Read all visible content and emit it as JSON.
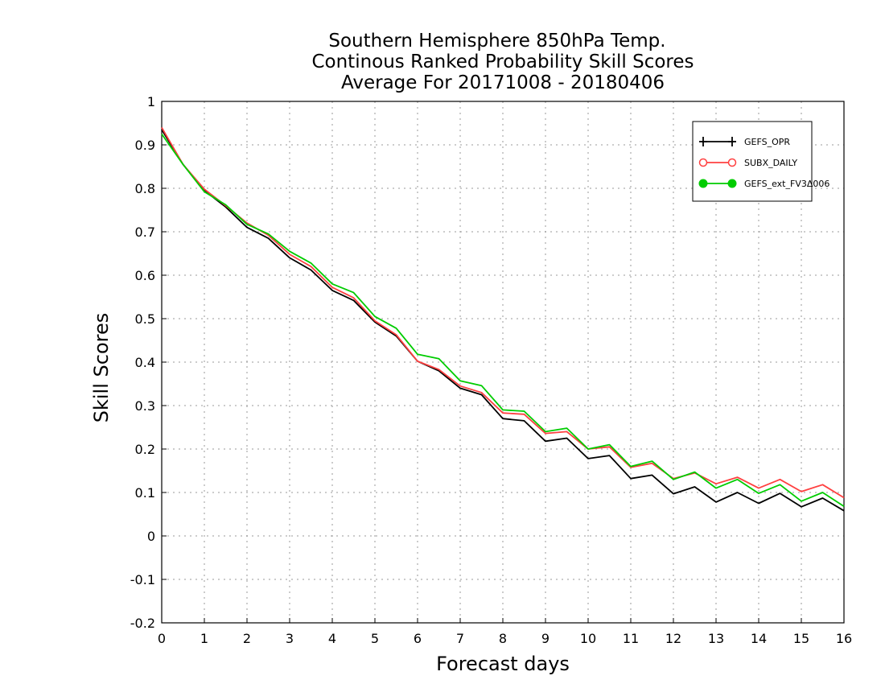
{
  "chart_data": {
    "type": "line",
    "title": [
      "Southern Hemisphere 850hPa Temp.",
      "Continous Ranked Probability Skill Scores",
      "Average For 20171008 - 20180406"
    ],
    "xlabel": "Forecast days",
    "ylabel": "Skill Scores",
    "xlim": [
      0,
      16
    ],
    "ylim": [
      -0.2,
      1
    ],
    "xticks": [
      "0",
      "1",
      "2",
      "3",
      "4",
      "5",
      "6",
      "7",
      "8",
      "9",
      "10",
      "11",
      "12",
      "13",
      "14",
      "15",
      "16"
    ],
    "yticks": [
      "-0.2",
      "-0.1",
      "0",
      "0.1",
      "0.2",
      "0.3",
      "0.4",
      "0.5",
      "0.6",
      "0.7",
      "0.8",
      "0.9",
      "1"
    ],
    "grid": true,
    "legend_position": "top-right",
    "x": [
      0,
      0.5,
      1,
      1.5,
      2,
      2.5,
      3,
      3.5,
      4,
      4.5,
      5,
      5.5,
      6,
      6.5,
      7,
      7.5,
      8,
      8.5,
      9,
      9.5,
      10,
      10.5,
      11,
      11.5,
      12,
      12.5,
      13,
      13.5,
      14,
      14.5,
      15,
      15.5,
      16
    ],
    "series": [
      {
        "name": "GEFS_OPR",
        "color": "#000000",
        "marker": "plus",
        "values": [
          0.935,
          0.855,
          0.795,
          0.757,
          0.71,
          0.685,
          0.64,
          0.612,
          0.565,
          0.542,
          0.492,
          0.46,
          0.402,
          0.38,
          0.34,
          0.325,
          0.27,
          0.265,
          0.218,
          0.225,
          0.178,
          0.185,
          0.132,
          0.14,
          0.097,
          0.113,
          0.078,
          0.1,
          0.075,
          0.098,
          0.067,
          0.087,
          0.058
        ]
      },
      {
        "name": "SUBX_DAILY",
        "color": "#ff4040",
        "marker": "open-circle",
        "values": [
          0.94,
          0.855,
          0.798,
          0.76,
          0.72,
          0.692,
          0.648,
          0.62,
          0.572,
          0.548,
          0.495,
          0.463,
          0.402,
          0.383,
          0.345,
          0.33,
          0.283,
          0.28,
          0.236,
          0.24,
          0.2,
          0.205,
          0.158,
          0.167,
          0.132,
          0.145,
          0.12,
          0.135,
          0.11,
          0.13,
          0.102,
          0.118,
          0.088
        ]
      },
      {
        "name": "GEFS_ext_FV3Δ006",
        "color": "#00cc00",
        "marker": "filled-circle",
        "values": [
          0.925,
          0.855,
          0.792,
          0.762,
          0.717,
          0.695,
          0.655,
          0.628,
          0.58,
          0.56,
          0.505,
          0.478,
          0.418,
          0.408,
          0.357,
          0.346,
          0.29,
          0.287,
          0.24,
          0.248,
          0.2,
          0.21,
          0.16,
          0.172,
          0.13,
          0.147,
          0.11,
          0.13,
          0.098,
          0.118,
          0.08,
          0.1,
          0.068
        ]
      }
    ]
  }
}
